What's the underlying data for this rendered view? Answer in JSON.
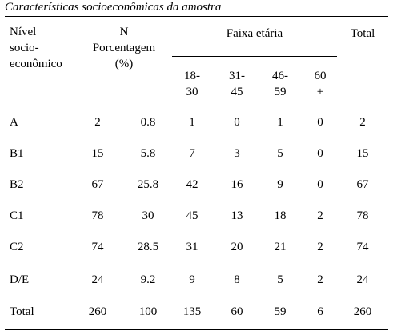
{
  "title": "Características socioeconômicas da amostra",
  "table": {
    "header": {
      "level": [
        "Nível",
        "socio-",
        "econômico"
      ],
      "n": "N",
      "percentage": [
        "Porcentagem",
        "(%)"
      ],
      "age_group": "Faixa etária",
      "age_ranges": [
        [
          "18-",
          "30"
        ],
        [
          "31-",
          "45"
        ],
        [
          "46-",
          "59"
        ],
        [
          "60",
          "+"
        ]
      ],
      "total": "Total"
    },
    "rows": [
      [
        "A",
        2,
        0.8,
        1,
        0,
        1,
        0,
        2
      ],
      [
        "B1",
        15,
        5.8,
        7,
        3,
        5,
        0,
        15
      ],
      [
        "B2",
        67,
        25.8,
        42,
        16,
        9,
        0,
        67
      ],
      [
        "C1",
        78,
        30,
        45,
        13,
        18,
        2,
        78
      ],
      [
        "C2",
        74,
        28.5,
        31,
        20,
        21,
        2,
        74
      ],
      [
        "D/E",
        24,
        9.2,
        9,
        8,
        5,
        2,
        24
      ],
      [
        "Total",
        260,
        100,
        135,
        60,
        59,
        6,
        260
      ]
    ]
  }
}
